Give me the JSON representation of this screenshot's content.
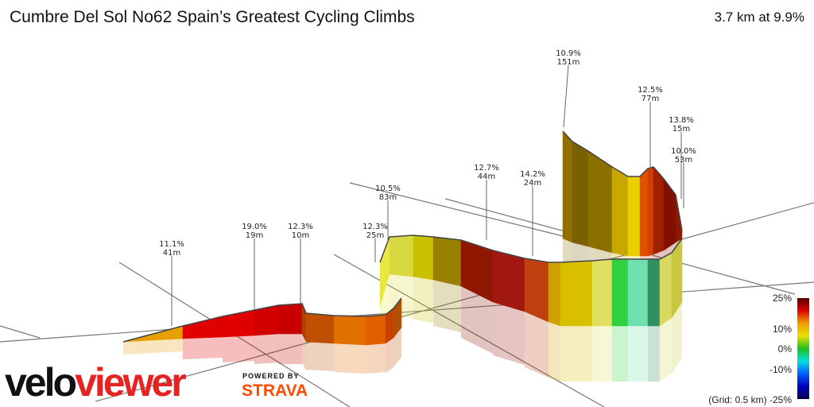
{
  "header": {
    "title": "Cumbre Del Sol No62 Spain’s Greatest Cycling Climbs",
    "summary": "3.7 km at 9.9%"
  },
  "chart_data": {
    "type": "3d-elevation-profile",
    "annotations": [
      {
        "gradient": "11.1%",
        "distance": "41m"
      },
      {
        "gradient": "19.0%",
        "distance": "19m"
      },
      {
        "gradient": "12.3%",
        "distance": "10m"
      },
      {
        "gradient": "12.3%",
        "distance": "25m"
      },
      {
        "gradient": "10.5%",
        "distance": "83m"
      },
      {
        "gradient": "12.7%",
        "distance": "44m"
      },
      {
        "gradient": "14.2%",
        "distance": "24m"
      },
      {
        "gradient": "10.9%",
        "distance": "151m"
      },
      {
        "gradient": "12.5%",
        "distance": "77m"
      },
      {
        "gradient": "13.8%",
        "distance": "15m"
      },
      {
        "gradient": "10.0%",
        "distance": "53m"
      }
    ],
    "legend": {
      "ticks": [
        "25%",
        "10%",
        "0%",
        "-10%",
        "-25%"
      ],
      "grid_note": "(Grid: 0.5 km)",
      "colors": [
        "#5a0000",
        "#e00000",
        "#f0a000",
        "#e8e000",
        "#20c020",
        "#00e0e0",
        "#0060ff",
        "#0000c0",
        "#000050"
      ]
    }
  },
  "branding": {
    "velo": "velo",
    "viewer": "viewer",
    "powered_by": "POWERED BY",
    "strava": "STRAVA"
  }
}
